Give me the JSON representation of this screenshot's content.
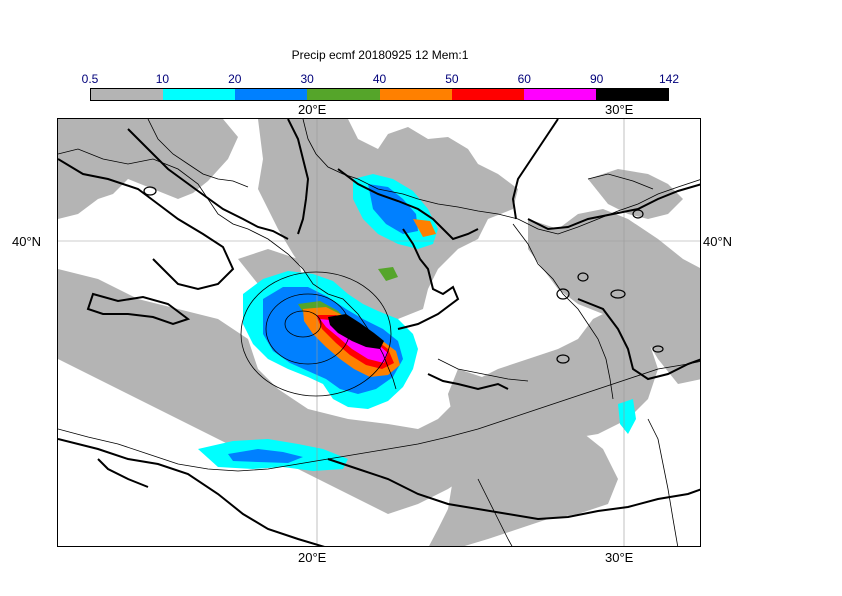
{
  "title": "Precip ecmf 20180925 12 Mem:1",
  "colorbar": {
    "labels": [
      "0.5",
      "10",
      "20",
      "30",
      "40",
      "50",
      "60",
      "90",
      "142"
    ],
    "colors": [
      "#b4b4b4",
      "#00ffff",
      "#0080ff",
      "#55a52a",
      "#ff8000",
      "#ff0000",
      "#ff00ff",
      "#000000"
    ]
  },
  "axes": {
    "lon_top": [
      "20°E",
      "30°E"
    ],
    "lon_bottom": [
      "20°E",
      "30°E"
    ],
    "lat_left": [
      "40°N"
    ],
    "lat_right": [
      "40°N"
    ]
  }
}
